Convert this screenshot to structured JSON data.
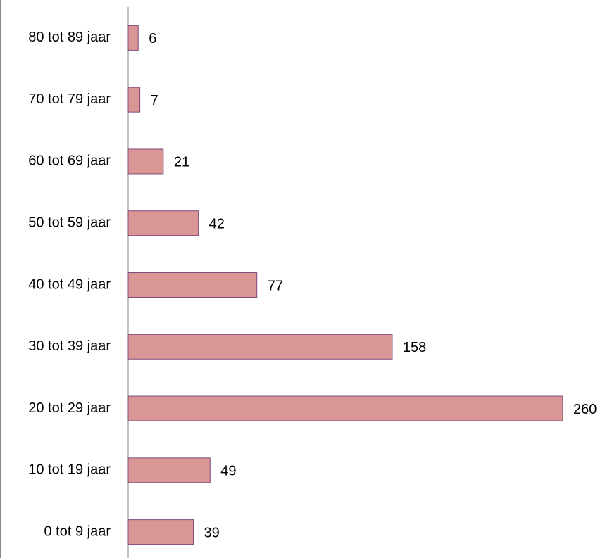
{
  "chart_data": {
    "type": "bar",
    "orientation": "horizontal",
    "categories": [
      "80 tot 89 jaar",
      "70 tot 79 jaar",
      "60 tot 69 jaar",
      "50 tot 59 jaar",
      "40 tot 49 jaar",
      "30 tot 39 jaar",
      "20 tot 29 jaar",
      "10 tot 19 jaar",
      "0 tot 9 jaar"
    ],
    "values": [
      6,
      7,
      21,
      42,
      77,
      158,
      260,
      49,
      39
    ],
    "color": "#d99694",
    "grid": false
  }
}
